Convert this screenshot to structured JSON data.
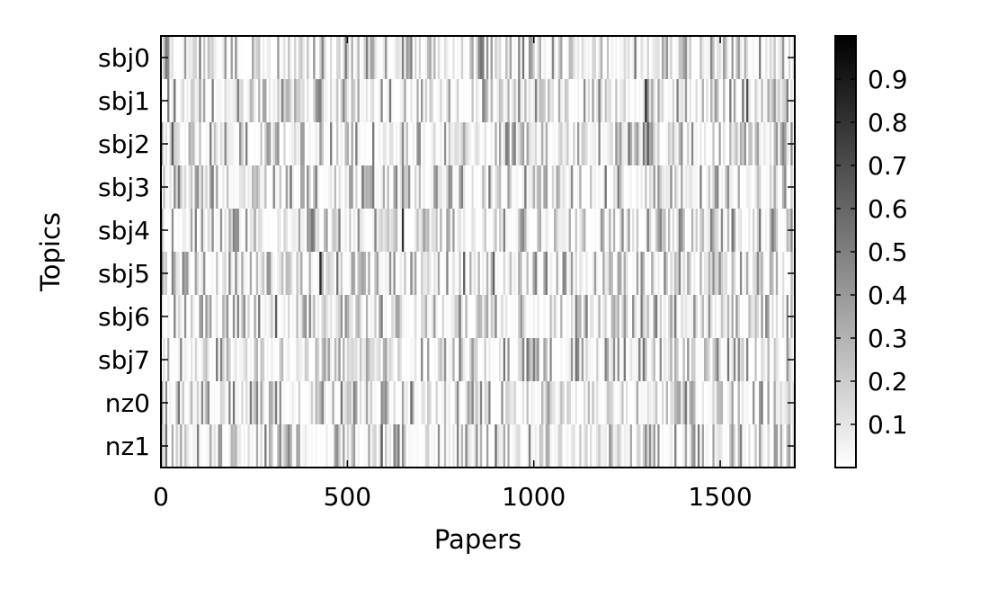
{
  "chart_data": {
    "type": "heatmap",
    "xlabel": "Papers",
    "ylabel": "Topics",
    "rows": [
      "sbj0",
      "sbj1",
      "sbj2",
      "sbj3",
      "sbj4",
      "sbj5",
      "sbj6",
      "sbj7",
      "nz0",
      "nz1"
    ],
    "xlim": [
      0,
      1700
    ],
    "x_ticks": [
      0,
      500,
      1000,
      1500
    ],
    "x_tick_labels": [
      "0",
      "500",
      "1000",
      "1500"
    ],
    "colorbar": {
      "range": [
        0,
        1
      ],
      "ticks": [
        0.1,
        0.2,
        0.3,
        0.4,
        0.5,
        0.6,
        0.7,
        0.8,
        0.9
      ],
      "tick_labels": [
        "0.1",
        "0.2",
        "0.3",
        "0.4",
        "0.5",
        "0.6",
        "0.7",
        "0.8",
        "0.9"
      ],
      "colormap": "gray_r"
    },
    "colormap_low": "#ffffff",
    "colormap_high": "#000000",
    "value_summary": "per-paper topic weights, mostly low (about 0.0–0.3) with scattered darker values up to about 0.9",
    "grid": false
  }
}
